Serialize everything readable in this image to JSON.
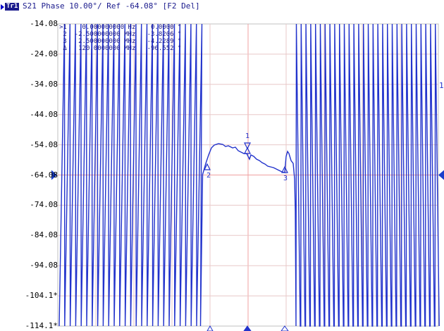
{
  "header": {
    "trace_tag": "Tr1",
    "title": "S21 Phase 10.00°/ Ref -64.08° [F2 Del]"
  },
  "y_axis": {
    "ticks": [
      "-14.08",
      "-24.08",
      "-34.08",
      "-44.08",
      "-54.08",
      "-64.08",
      "-74.08",
      "-84.08",
      "-94.08",
      "-104.1*",
      "-114.1*"
    ],
    "reference_value": "-64.08"
  },
  "markers_table": [
    {
      "id": ">1",
      "freq": "0.000000000 Hz",
      "value": "0.0000 °"
    },
    {
      "id": "2",
      "freq": "-2.500000000 MHz",
      "value": "-3.8206 °"
    },
    {
      "id": "3",
      "freq": "2.500000000 MHz",
      "value": "-4.2289 °"
    },
    {
      "id": "Δ",
      "freq": "120.0000000 MHz",
      "value": "-96.552 °"
    }
  ],
  "trace": {
    "label": "1",
    "color": "#2233cc"
  },
  "marker_labels": [
    "1",
    "2",
    "3"
  ],
  "colors": {
    "trace": "#2233cc",
    "grid_center": "#f0a0a0",
    "grid": "#e8c8c8",
    "reference_arrow": "#1a3fcc",
    "text": "#1a1a8c"
  }
}
